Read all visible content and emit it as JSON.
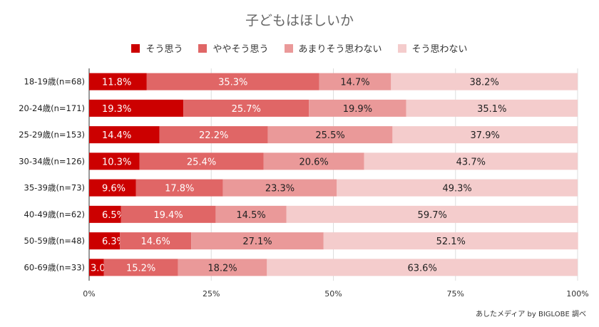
{
  "chart_data": {
    "type": "bar",
    "orientation": "horizontal",
    "stacked": true,
    "title": "子どもはほしいか",
    "categories": [
      "18-19歳(n=68)",
      "20-24歳(n=171)",
      "25-29歳(n=153)",
      "30-34歳(n=126)",
      "35-39歳(n=73)",
      "40-49歳(n=62)",
      "50-59歳(n=48)",
      "60-69歳(n=33)"
    ],
    "series": [
      {
        "name": "そう思う",
        "color": "#cc0000",
        "values": [
          11.8,
          19.3,
          14.4,
          10.3,
          9.6,
          6.5,
          6.3,
          3.0
        ]
      },
      {
        "name": "ややそう思う",
        "color": "#e06666",
        "values": [
          35.3,
          25.7,
          22.2,
          25.4,
          17.8,
          19.4,
          14.6,
          15.2
        ]
      },
      {
        "name": "あまりそう思わない",
        "color": "#ea9999",
        "values": [
          14.7,
          19.9,
          25.5,
          20.6,
          23.3,
          14.5,
          27.1,
          18.2
        ]
      },
      {
        "name": "そう思わない",
        "color": "#f4cccc",
        "values": [
          38.2,
          35.1,
          37.9,
          43.7,
          49.3,
          59.7,
          52.1,
          63.6
        ]
      }
    ],
    "xlim": [
      0,
      100
    ],
    "xticks": [
      "0%",
      "25%",
      "50%",
      "75%",
      "100%"
    ],
    "grid": true,
    "legend": "top",
    "source": "あしたメディア by BIGLOBE 調べ"
  }
}
